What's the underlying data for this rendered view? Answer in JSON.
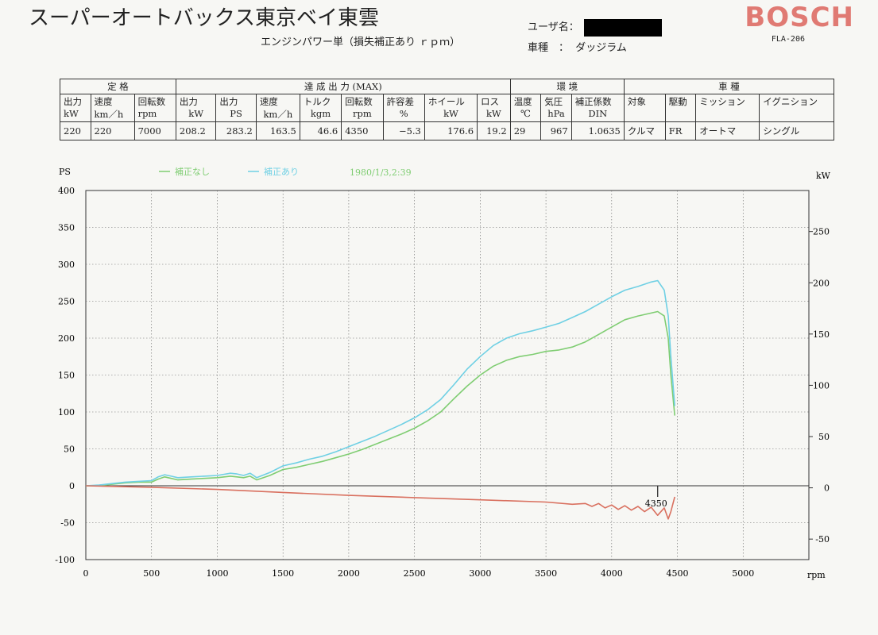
{
  "header": {
    "title": "スーパーオートバックス東京ベイ東雲",
    "subtitle": "エンジンパワー単（損失補正あり ｒｐｍ）",
    "user_label": "ユーザ名：",
    "vehicle_label": "車種　：",
    "vehicle_value": "ダッジラム",
    "brand": "BOSCH",
    "model": "FLA-206"
  },
  "table": {
    "groups": {
      "rated": "定 格",
      "achieved": "達 成 出 力 (MAX)",
      "env": "環 境",
      "vehicle": "車 種"
    },
    "headers": [
      [
        "出力",
        "kW"
      ],
      [
        "速度",
        "km／h"
      ],
      [
        "回転数",
        "rpm"
      ],
      [
        "出力",
        "kW"
      ],
      [
        "出力",
        "PS"
      ],
      [
        "速度",
        "km／h"
      ],
      [
        "トルク",
        "kgm"
      ],
      [
        "回転数",
        "rpm"
      ],
      [
        "許容差",
        "%"
      ],
      [
        "ホイール",
        "kW"
      ],
      [
        "ロス",
        "kW"
      ],
      [
        "温度",
        "℃"
      ],
      [
        "気圧",
        "hPa"
      ],
      [
        "補正係数",
        "DIN"
      ],
      [
        "対象",
        ""
      ],
      [
        "駆動",
        ""
      ],
      [
        "ミッション",
        ""
      ],
      [
        "イグニション",
        ""
      ]
    ],
    "values": [
      "220",
      "220",
      "7000",
      "208.2",
      "283.2",
      "163.5",
      "46.6",
      "4350",
      "−5.3",
      "176.6",
      "19.2",
      "29",
      "967",
      "1.0635",
      "クルマ",
      "FR",
      "オートマ",
      "シングル"
    ]
  },
  "chart_data": {
    "type": "line",
    "timestamp": "1980/1/3,2:39",
    "xlabel": "rpm",
    "ylabel_left": "PS",
    "ylabel_right": "kW",
    "xlim": [
      0,
      5500
    ],
    "ylim_left": [
      -100,
      400
    ],
    "ylim_right": [
      -70,
      290
    ],
    "xticks": [
      0,
      500,
      1000,
      1500,
      2000,
      2500,
      3000,
      3500,
      4000,
      4500,
      5000
    ],
    "yticks_left": [
      -100,
      -50,
      0,
      50,
      100,
      150,
      200,
      250,
      300,
      350,
      400
    ],
    "yticks_right": [
      -50,
      0,
      50,
      100,
      150,
      200,
      250
    ],
    "grid": true,
    "marker": {
      "x": 4350,
      "label": "4350"
    },
    "colors": {
      "uncorrected": "#7fcd72",
      "corrected": "#6fd0e4",
      "loss": "#d9705f",
      "axis": "#333333"
    },
    "series": [
      {
        "name": "補正なし",
        "color": "#7fcd72",
        "x": [
          0,
          100,
          200,
          300,
          400,
          500,
          550,
          600,
          650,
          700,
          800,
          900,
          1000,
          1100,
          1150,
          1200,
          1250,
          1300,
          1400,
          1500,
          1600,
          1700,
          1800,
          1900,
          2000,
          2100,
          2200,
          2300,
          2400,
          2500,
          2600,
          2700,
          2800,
          2900,
          3000,
          3100,
          3200,
          3300,
          3400,
          3500,
          3600,
          3700,
          3800,
          3900,
          4000,
          4100,
          4200,
          4300,
          4350,
          4400,
          4430,
          4450,
          4480
        ],
        "y": [
          0,
          0,
          2,
          4,
          5,
          5,
          9,
          12,
          10,
          8,
          9,
          10,
          11,
          13,
          12,
          11,
          13,
          8,
          14,
          22,
          25,
          29,
          33,
          38,
          43,
          49,
          56,
          63,
          70,
          78,
          88,
          100,
          118,
          135,
          150,
          162,
          170,
          175,
          178,
          182,
          184,
          188,
          195,
          205,
          215,
          225,
          230,
          234,
          236,
          230,
          200,
          150,
          95
        ]
      },
      {
        "name": "補正あり",
        "color": "#6fd0e4",
        "x": [
          0,
          100,
          200,
          300,
          400,
          500,
          550,
          600,
          650,
          700,
          800,
          900,
          1000,
          1100,
          1150,
          1200,
          1250,
          1300,
          1400,
          1500,
          1600,
          1700,
          1800,
          1900,
          2000,
          2100,
          2200,
          2300,
          2400,
          2500,
          2600,
          2700,
          2800,
          2900,
          3000,
          3100,
          3200,
          3300,
          3400,
          3500,
          3600,
          3700,
          3800,
          3900,
          4000,
          4100,
          4200,
          4300,
          4350,
          4400,
          4430,
          4450,
          4480
        ],
        "y": [
          0,
          1,
          3,
          5,
          6,
          7,
          12,
          15,
          13,
          11,
          12,
          13,
          14,
          17,
          16,
          14,
          17,
          11,
          18,
          27,
          31,
          36,
          40,
          46,
          53,
          60,
          67,
          75,
          83,
          92,
          103,
          117,
          137,
          158,
          175,
          190,
          200,
          206,
          210,
          215,
          220,
          228,
          236,
          246,
          256,
          265,
          270,
          276,
          278,
          265,
          230,
          175,
          108
        ]
      },
      {
        "name": "loss",
        "color": "#d9705f",
        "x": [
          0,
          500,
          1000,
          1500,
          2000,
          2500,
          3000,
          3500,
          3700,
          3800,
          3850,
          3900,
          3950,
          4000,
          4050,
          4100,
          4150,
          4200,
          4250,
          4300,
          4350,
          4400,
          4430,
          4450,
          4480
        ],
        "y": [
          0,
          -2,
          -5,
          -9,
          -13,
          -16,
          -19,
          -22,
          -25,
          -24,
          -28,
          -24,
          -30,
          -26,
          -32,
          -27,
          -33,
          -28,
          -35,
          -29,
          -40,
          -30,
          -45,
          -35,
          -15
        ]
      }
    ]
  }
}
